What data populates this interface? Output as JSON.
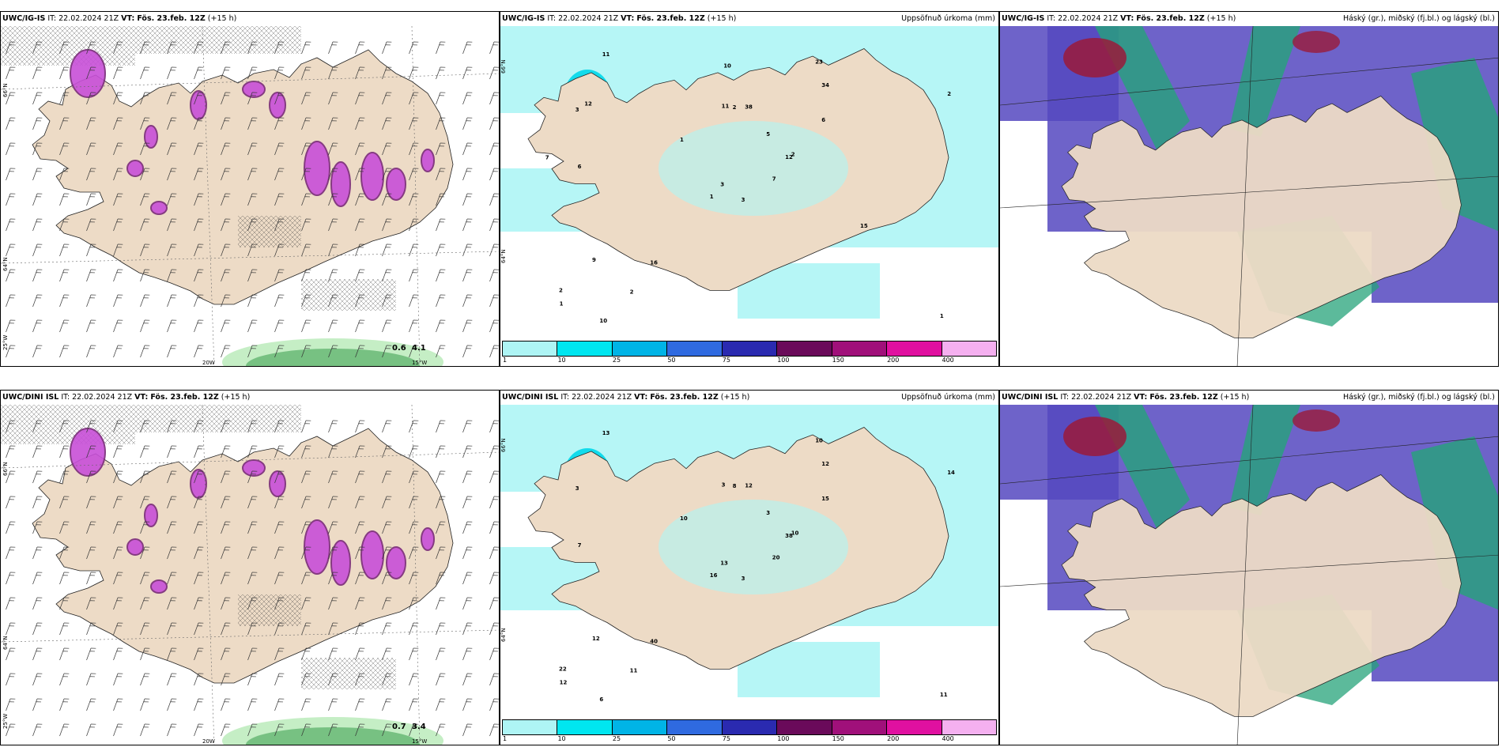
{
  "panels": [
    {
      "model": "UWC/IG-IS",
      "it_label": "IT:",
      "it": "22.02.2024 21Z",
      "vt_label": "VT:",
      "vt": "Fös. 23.feb. 12Z",
      "lead": "(+15 h)",
      "right": ""
    },
    {
      "model": "UWC/IG-IS",
      "it_label": "IT:",
      "it": "22.02.2024 21Z",
      "vt_label": "VT:",
      "vt": "Fös. 23.feb. 12Z",
      "lead": "(+15 h)",
      "right": "Uppsöfnuð úrkoma (mm)"
    },
    {
      "model": "UWC/IG-IS",
      "it_label": "IT:",
      "it": "22.02.2024 21Z",
      "vt_label": "VT:",
      "vt": "Fös. 23.feb. 12Z",
      "lead": "(+15 h)",
      "right": "Háský (gr.), miðský (fj.bl.) og lágský (bl.)"
    },
    {
      "model": "UWC/DINI ISL",
      "it_label": "IT:",
      "it": "22.02.2024 21Z",
      "vt_label": "VT:",
      "vt": "Fös. 23.feb. 12Z",
      "lead": "(+15 h)",
      "right": ""
    },
    {
      "model": "UWC/DINI ISL",
      "it_label": "IT:",
      "it": "22.02.2024 21Z",
      "vt_label": "VT:",
      "vt": "Fös. 23.feb. 12Z",
      "lead": "(+15 h)",
      "right": "Uppsöfnuð úrkoma (mm)"
    },
    {
      "model": "UWC/DINI ISL",
      "it_label": "IT:",
      "it": "22.02.2024 21Z",
      "vt_label": "VT:",
      "vt": "Fös. 23.feb. 12Z",
      "lead": "(+15 h)",
      "right": "Háský (gr.), miðský (fj.bl.) og lágský (bl.)"
    }
  ],
  "grid_labels": {
    "lat66": "66°N",
    "lat64": "64°N",
    "lon25": "25°W",
    "lon20": "20W",
    "lon15": "15°W"
  },
  "colorbar": {
    "colors": [
      "#aef5f5",
      "#00e6f0",
      "#00b4e6",
      "#2f6ae0",
      "#2a2ab0",
      "#6a0a5a",
      "#a0107a",
      "#e010a0",
      "#f5b0f0"
    ],
    "ticks": [
      "1",
      "10",
      "25",
      "50",
      "75",
      "100",
      "150",
      "200",
      "400"
    ]
  },
  "precip_labels_top": [
    "3",
    "3",
    "3",
    "2",
    "12",
    "16",
    "23",
    "38",
    "34",
    "7",
    "11",
    "1",
    "6",
    "2",
    "1",
    "6",
    "10",
    "11",
    "5",
    "9",
    "1",
    "1",
    "2",
    "2",
    "2",
    "15",
    "12",
    "10",
    "7"
  ],
  "precip_labels_bottom": [
    "3",
    "3",
    "13",
    "22",
    "38",
    "40",
    "10",
    "12",
    "12",
    "20",
    "13",
    "11",
    "7",
    "14",
    "16",
    "15",
    "6",
    "3",
    "3",
    "12",
    "10",
    "12",
    "11",
    "8",
    "10"
  ],
  "wind_max_top": [
    "0.6",
    "4.1"
  ],
  "wind_max_bottom": [
    "0.7",
    "3.4"
  ],
  "colors": {
    "land": "#eddbc6",
    "precip_pink": "#c84fd8",
    "precip_dark": "#7a2a7a",
    "sea_cyan": "#aef5f5",
    "cloud_blue": "#5548c0",
    "cloud_green": "#25a37a",
    "cloud_red": "#9a1a3a"
  }
}
